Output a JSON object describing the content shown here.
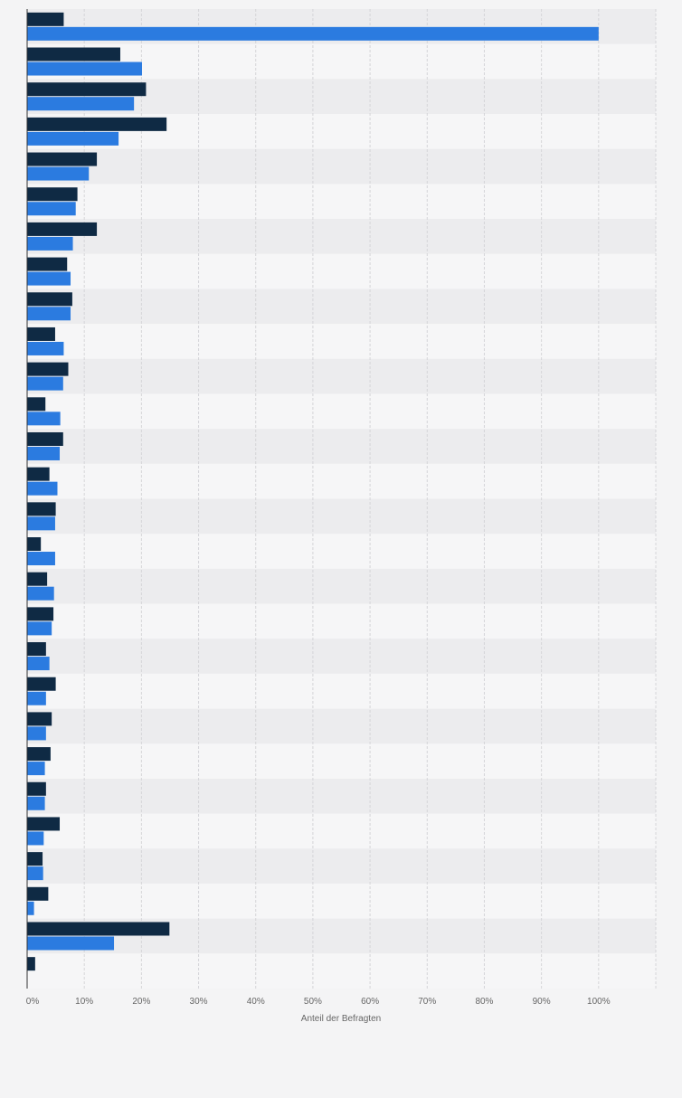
{
  "chart_data": {
    "type": "bar",
    "orientation": "horizontal",
    "xlabel": "Anteil der Befragten",
    "xlim": [
      0,
      110
    ],
    "xticks": [
      0,
      10,
      20,
      30,
      40,
      50,
      60,
      70,
      80,
      90,
      100
    ],
    "tick_suffix": "%",
    "grid": true,
    "colors": {
      "series_1": "#0f2a44",
      "series_2": "#2b7be0",
      "band_odd": "#ececee",
      "band_even": "#f6f6f7",
      "grid": "#d5d5d8",
      "axis": "#333333",
      "label": "#666666"
    },
    "series": [
      {
        "values": [
          6.4,
          16.3,
          20.8,
          24.4,
          12.2,
          8.8,
          12.2,
          7.0,
          7.9,
          4.9,
          7.2,
          3.2,
          6.3,
          3.9,
          5.0,
          2.4,
          3.5,
          4.6,
          3.3,
          5.0,
          4.3,
          4.1,
          3.3,
          5.7,
          2.7,
          3.7,
          24.9,
          1.4
        ]
      },
      {
        "values": [
          100,
          20.1,
          18.7,
          16.0,
          10.8,
          8.5,
          8.0,
          7.6,
          7.6,
          6.4,
          6.3,
          5.8,
          5.7,
          5.3,
          4.9,
          4.9,
          4.7,
          4.3,
          3.9,
          3.3,
          3.3,
          3.1,
          3.1,
          2.9,
          2.8,
          1.2,
          15.2,
          null
        ]
      }
    ]
  }
}
